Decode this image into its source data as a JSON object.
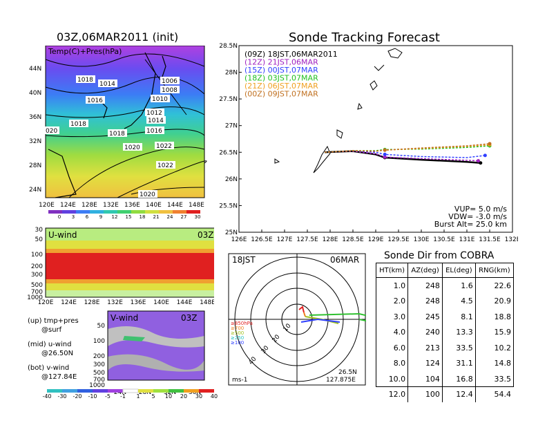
{
  "left_map": {
    "title": "03Z,06MAR2011 (init)",
    "label": "Temp(C)+Pres(hPa)",
    "lat_ticks": [
      "44N",
      "40N",
      "36N",
      "32N",
      "28N",
      "24N"
    ],
    "lon_ticks": [
      "120E",
      "124E",
      "128E",
      "132E",
      "136E",
      "140E",
      "144E",
      "148E"
    ],
    "isobars": [
      "1018",
      "1014",
      "1006",
      "1008",
      "1016",
      "1010",
      "1012",
      "1014",
      "1016",
      "1018",
      "1018",
      "1020",
      "1022",
      "1022",
      "1020",
      "020"
    ],
    "colorbar": [
      "0",
      "3",
      "6",
      "9",
      "12",
      "15",
      "18",
      "21",
      "24",
      "27",
      "30"
    ]
  },
  "uwind": {
    "title": "U-wind",
    "time": "03Z",
    "y_ticks": [
      "30",
      "50",
      "100",
      "200",
      "300",
      "500",
      "700",
      "1000"
    ],
    "x_ticks": [
      "120E",
      "124E",
      "128E",
      "132E",
      "136E",
      "140E",
      "144E",
      "148E"
    ]
  },
  "vwind": {
    "title": "V-wind",
    "time": "03Z",
    "y_ticks": [
      "50",
      "100",
      "200",
      "300",
      "500",
      "700",
      "1000"
    ],
    "x_ticks": [
      "24N",
      "28N",
      "32N",
      "36N"
    ],
    "colorbar": [
      "-40",
      "-30",
      "-20",
      "-10",
      "-5",
      "-1",
      "1",
      "5",
      "10",
      "20",
      "30",
      "40"
    ]
  },
  "legend_notes": {
    "up": "(up) tmp+pres",
    "up2": "@surf",
    "mid": "(mid) u-wind",
    "mid2": "@26.50N",
    "bot": "(bot) v-wind",
    "bot2": "@127.84E"
  },
  "tracking": {
    "title": "Sonde Tracking Forecast",
    "legend": [
      {
        "text": "(09Z)  18JST,06MAR2011",
        "color": "#000000"
      },
      {
        "text": "(12Z)  21JST,06MAR",
        "color": "#a020c0"
      },
      {
        "text": "(15Z)  00JST,07MAR",
        "color": "#3040ff"
      },
      {
        "text": "(18Z)  03JST,07MAR",
        "color": "#20c020"
      },
      {
        "text": "(21Z)  06JST,07MAR",
        "color": "#f0a020"
      },
      {
        "text": "(00Z)  09JST,07MAR",
        "color": "#c07020"
      }
    ],
    "params": [
      "VUP=  5.0  m/s",
      "VDW= -3.0  m/s",
      "Burst Alt=  25.0  km"
    ],
    "lat_ticks": [
      "28.5N",
      "28N",
      "27.5N",
      "27N",
      "26.5N",
      "26N",
      "25.5N",
      "25N"
    ],
    "lon_ticks": [
      "126E",
      "126.5E",
      "127E",
      "127.5E",
      "128E",
      "128.5E",
      "129E",
      "129.5E",
      "130E",
      "130.5E",
      "131E",
      "131.5E",
      "132E"
    ]
  },
  "chart_data": {
    "type": "line",
    "title": "Sonde Tracking Forecast",
    "xlim": [
      126,
      132
    ],
    "ylim": [
      25,
      28.5
    ],
    "series": [
      {
        "name": "(09Z)  18JST,06MAR2011",
        "x": [
          127.88,
          128.5,
          129.0,
          129.2,
          130.0,
          131.0,
          131.3
        ],
        "y": [
          26.5,
          26.52,
          26.46,
          26.4,
          26.36,
          26.32,
          26.3
        ]
      },
      {
        "name": "(12Z)  21JST,06MAR",
        "x": [
          127.88,
          128.5,
          129.0,
          129.2,
          130.0,
          131.0,
          131.25
        ],
        "y": [
          26.5,
          26.52,
          26.47,
          26.41,
          26.38,
          26.35,
          26.34
        ]
      },
      {
        "name": "(15Z)  00JST,07MAR",
        "x": [
          127.88,
          128.5,
          129.0,
          129.2,
          130.0,
          131.0,
          131.4
        ],
        "y": [
          26.5,
          26.53,
          26.5,
          26.46,
          26.42,
          26.4,
          26.44
        ]
      },
      {
        "name": "(18Z)  03JST,07MAR",
        "x": [
          127.88,
          128.5,
          129.0,
          129.2,
          130.0,
          131.0,
          131.5
        ],
        "y": [
          26.5,
          26.53,
          26.53,
          26.55,
          26.56,
          26.59,
          26.62
        ]
      },
      {
        "name": "(21Z)  06JST,07MAR",
        "x": [
          127.88,
          128.5,
          129.0,
          129.2,
          130.0,
          131.0,
          131.5
        ],
        "y": [
          26.5,
          26.53,
          26.52,
          26.54,
          26.57,
          26.61,
          26.64
        ]
      },
      {
        "name": "(00Z)  09JST,07MAR",
        "x": [
          127.88,
          128.5,
          129.0,
          129.2,
          130.0,
          131.0,
          131.5
        ],
        "y": [
          26.5,
          26.53,
          26.52,
          26.54,
          26.58,
          26.62,
          26.66
        ]
      }
    ]
  },
  "polar": {
    "time": "18JST",
    "date": "06MAR",
    "unit": "ms-1",
    "loc1": "26.5N",
    "loc2": "127.875E",
    "ring_labels": [
      "10",
      "20",
      "30",
      "40"
    ],
    "level_legend": [
      {
        "text": "≥850hPa",
        "color": "#e02020"
      },
      {
        "text": "≥700",
        "color": "#f08020"
      },
      {
        "text": "≥500",
        "color": "#a0c020"
      },
      {
        "text": "≥250",
        "color": "#20c0c0"
      },
      {
        "text": "≥100",
        "color": "#3040ff"
      }
    ]
  },
  "sonde_dir": {
    "title": "Sonde Dir from COBRA",
    "headers": [
      "HT(km)",
      "AZ(deg)",
      "EL(deg)",
      "RNG(km)"
    ],
    "rows": [
      [
        "1.0",
        "248",
        "1.6",
        "22.6"
      ],
      [
        "2.0",
        "248",
        "4.5",
        "20.9"
      ],
      [
        "3.0",
        "245",
        "8.1",
        "18.8"
      ],
      [
        "4.0",
        "240",
        "13.3",
        "15.9"
      ],
      [
        "6.0",
        "213",
        "33.5",
        "10.2"
      ],
      [
        "8.0",
        "124",
        "31.1",
        "14.8"
      ],
      [
        "10.0",
        "104",
        "16.8",
        "33.5"
      ],
      [
        "12.0",
        "100",
        "12.4",
        "54.4"
      ]
    ]
  }
}
